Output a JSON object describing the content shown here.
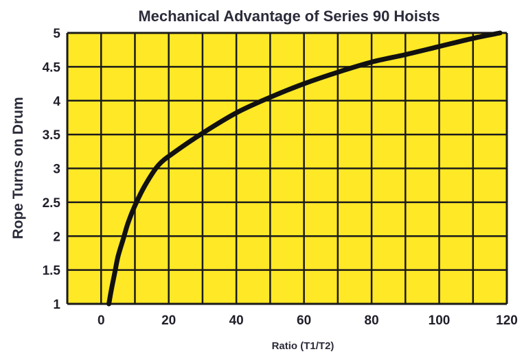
{
  "chart_data": {
    "type": "line",
    "title": "Mechanical Advantage of Series 90 Hoists",
    "xlabel": "Ratio (T1/T2)",
    "ylabel": "Rope Turns on Drum",
    "xlim": [
      -10,
      120
    ],
    "ylim": [
      1,
      5
    ],
    "x_ticks": [
      0,
      20,
      40,
      60,
      80,
      100,
      120
    ],
    "x_tick_labels": [
      "0",
      "20",
      "40",
      "60",
      "80",
      "100",
      "120"
    ],
    "y_ticks": [
      1,
      1.5,
      2,
      2.5,
      3,
      3.5,
      4,
      4.5,
      5
    ],
    "y_tick_labels": [
      "1",
      "1.5",
      "2",
      "2.5",
      "3",
      "3.5",
      "4",
      "4.5",
      "5"
    ],
    "grid": true,
    "x_gridlines": [
      -10,
      0,
      10,
      20,
      30,
      40,
      50,
      60,
      70,
      80,
      90,
      100,
      110,
      120
    ],
    "series": [
      {
        "x": [
          2.3,
          3,
          4,
          5,
          6.5,
          8,
          10,
          13,
          17,
          22,
          30,
          40,
          50,
          60,
          70,
          80,
          90,
          100,
          110,
          118
        ],
        "y": [
          1.0,
          1.2,
          1.45,
          1.7,
          1.95,
          2.2,
          2.45,
          2.75,
          3.05,
          3.25,
          3.52,
          3.82,
          4.05,
          4.25,
          4.42,
          4.57,
          4.68,
          4.8,
          4.92,
          5.0
        ]
      }
    ],
    "colors": {
      "plot_background": "#ffe826",
      "grid": "#1a1a1a",
      "line": "#111111",
      "text": "#2b2b3a"
    }
  }
}
